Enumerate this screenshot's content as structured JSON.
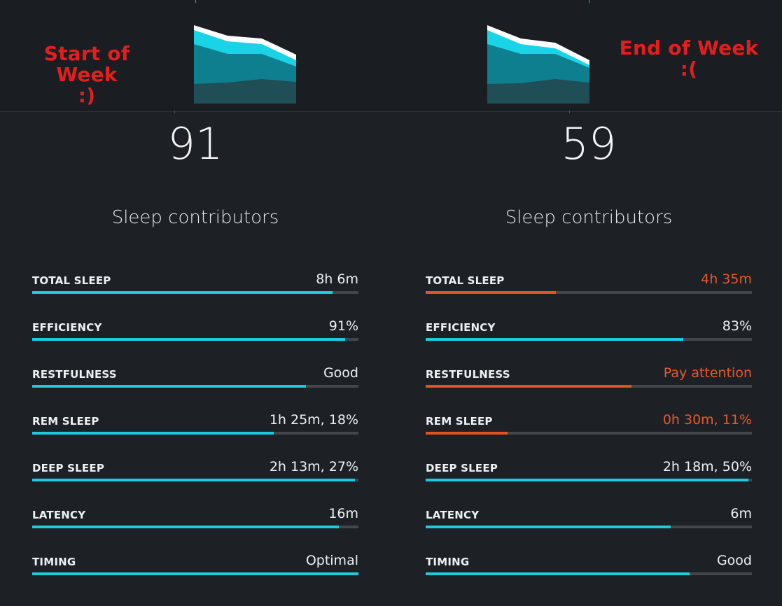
{
  "annotations": {
    "left": {
      "title": "Start of Week",
      "face": ":)"
    },
    "right": {
      "title": "End of Week",
      "face": ":("
    }
  },
  "colors": {
    "accent": "#1ccbe2",
    "warning": "#e4521f",
    "annotation": "#e21e1e",
    "background": "#1d2126"
  },
  "icons": [
    "sleep-stage-chart"
  ],
  "left": {
    "score": "91",
    "contributors_title": "Sleep contributors",
    "contributors": [
      {
        "label": "TOTAL SLEEP",
        "value": "8h 6m",
        "progress": 0.92,
        "status": "ok"
      },
      {
        "label": "EFFICIENCY",
        "value": "91%",
        "progress": 0.96,
        "status": "ok"
      },
      {
        "label": "RESTFULNESS",
        "value": "Good",
        "progress": 0.84,
        "status": "ok"
      },
      {
        "label": "REM SLEEP",
        "value": "1h 25m, 18%",
        "progress": 0.74,
        "status": "ok"
      },
      {
        "label": "DEEP SLEEP",
        "value": "2h 13m, 27%",
        "progress": 0.99,
        "status": "ok"
      },
      {
        "label": "LATENCY",
        "value": "16m",
        "progress": 0.94,
        "status": "ok"
      },
      {
        "label": "TIMING",
        "value": "Optimal",
        "progress": 1.0,
        "status": "ok"
      }
    ]
  },
  "right": {
    "score": "59",
    "contributors_title": "Sleep contributors",
    "contributors": [
      {
        "label": "TOTAL SLEEP",
        "value": "4h 35m",
        "progress": 0.4,
        "status": "warn"
      },
      {
        "label": "EFFICIENCY",
        "value": "83%",
        "progress": 0.79,
        "status": "ok"
      },
      {
        "label": "RESTFULNESS",
        "value": "Pay attention",
        "progress": 0.63,
        "status": "warn"
      },
      {
        "label": "REM SLEEP",
        "value": "0h 30m, 11%",
        "progress": 0.25,
        "status": "warn"
      },
      {
        "label": "DEEP SLEEP",
        "value": "2h 18m, 50%",
        "progress": 0.99,
        "status": "ok"
      },
      {
        "label": "LATENCY",
        "value": "6m",
        "progress": 0.75,
        "status": "ok"
      },
      {
        "label": "TIMING",
        "value": "Good",
        "progress": 0.81,
        "status": "ok"
      }
    ]
  }
}
